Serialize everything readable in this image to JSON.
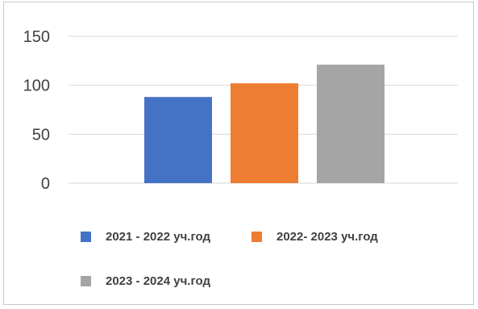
{
  "chart_data": {
    "type": "bar",
    "categories": [
      "2021 - 2022 уч.год",
      "2022- 2023 уч.год",
      "2023 - 2024 уч.год"
    ],
    "values": [
      88,
      102,
      121
    ],
    "colors": [
      "#4472c4",
      "#ed7d31",
      "#a5a5a5"
    ],
    "title": "",
    "xlabel": "",
    "ylabel": "",
    "ylim": [
      0,
      150
    ],
    "yticks": [
      "0",
      "50",
      "100",
      "150"
    ],
    "grid": true,
    "legend_position": "bottom"
  }
}
